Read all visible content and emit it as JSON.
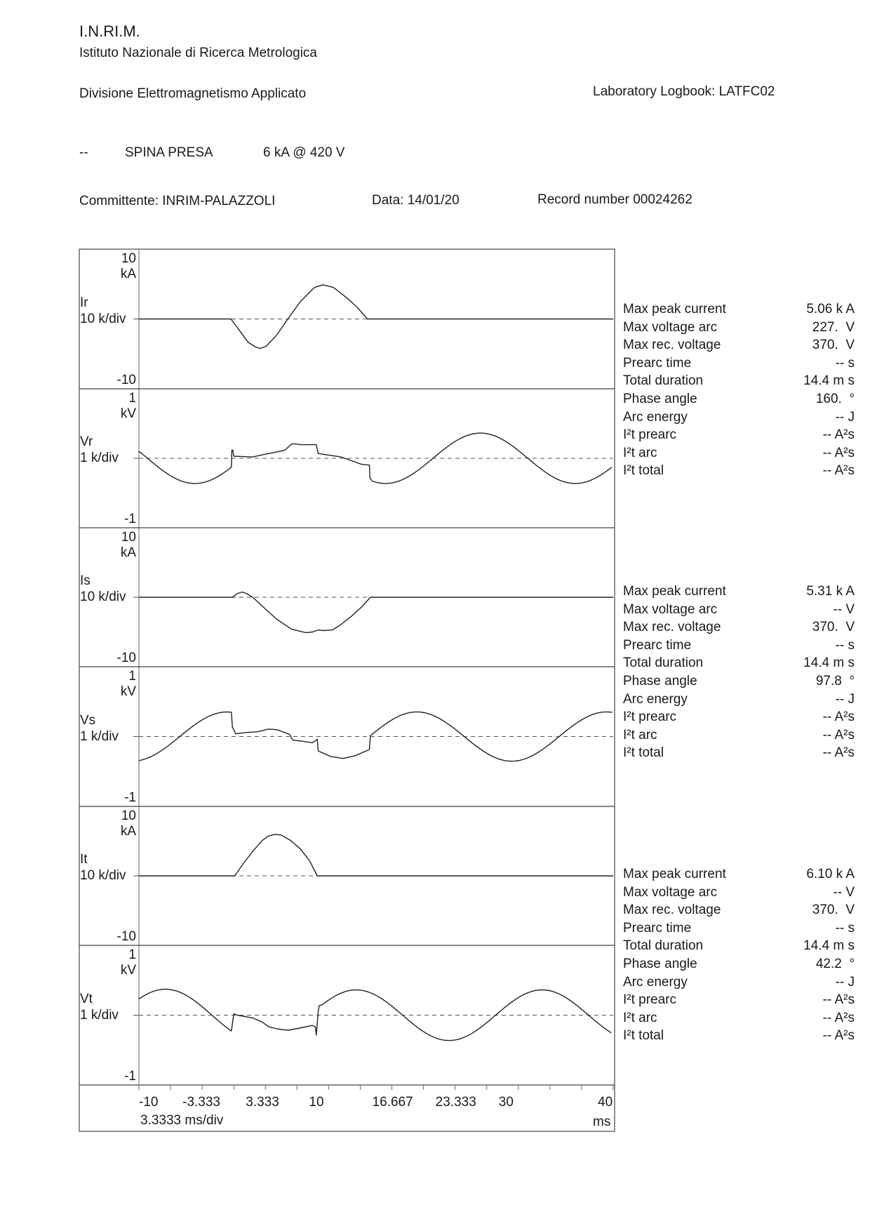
{
  "header": {
    "org_abbr": "I.N.RI.M.",
    "org_name": "Istituto Nazionale di Ricerca Metrologica",
    "division": "Divisione Elettromagnetismo Applicato",
    "logbook": "Laboratory Logbook: LATFC02",
    "test_dash": "--",
    "test_name": "SPINA PRESA",
    "test_rating": "6 kA @ 420 V",
    "client": "Committente: INRIM-PALAZZOLI",
    "date": "Data: 14/01/20",
    "record": "Record number 00024262"
  },
  "chart_data": {
    "type": "line",
    "x_axis": {
      "range": [
        -10,
        40
      ],
      "tick_step": 3.3333,
      "tick_labels": [
        {
          "value": -10,
          "label": "-10"
        },
        {
          "value": -3.333,
          "label": "-3.333"
        },
        {
          "value": 3.333,
          "label": "3.333"
        },
        {
          "value": 10,
          "label": "10"
        },
        {
          "value": 16.667,
          "label": "16.667"
        },
        {
          "value": 23.333,
          "label": "23.333"
        },
        {
          "value": 30,
          "label": "30"
        },
        {
          "value": 40,
          "label": "40"
        }
      ],
      "scale_label": "3.3333 ms/div",
      "unit": "ms"
    },
    "panels": [
      {
        "name": "Ir",
        "div_label": "10 k/div",
        "unit": "kA",
        "max_label": "10",
        "min_label": "-10",
        "range": [
          -10,
          10
        ],
        "segments": [
          {
            "points": [
              [
                -10,
                0
              ],
              [
                -0.3,
                0
              ],
              [
                0.5,
                -1.5
              ],
              [
                1.5,
                -3.4
              ],
              [
                2.3,
                -4.1
              ],
              [
                2.8,
                -4.3
              ],
              [
                3.4,
                -4.0
              ],
              [
                4.5,
                -2.4
              ],
              [
                5.7,
                0
              ],
              [
                7,
                2.5
              ],
              [
                8.5,
                4.6
              ],
              [
                9.4,
                5.0
              ],
              [
                10.5,
                4.6
              ],
              [
                12,
                3.0
              ],
              [
                13,
                1.7
              ],
              [
                14.1,
                0
              ],
              [
                40,
                0
              ]
            ]
          }
        ]
      },
      {
        "name": "Vr",
        "div_label": "1 k/div",
        "unit": "kV",
        "max_label": "1",
        "min_label": "-1",
        "range": [
          -1,
          1
        ],
        "segments": [
          {
            "sine": {
              "t0": -10,
              "t1": -0.4,
              "amp": 0.37,
              "period": 20,
              "t_up": 0.9
            }
          },
          {
            "points": [
              [
                -0.25,
                -0.13
              ],
              [
                -0.2,
                0.12
              ],
              [
                -0.1,
                0.12
              ],
              [
                0,
                0.03
              ],
              [
                2,
                0.02
              ],
              [
                3,
                0.05
              ],
              [
                4.1,
                0.08
              ],
              [
                5.4,
                0.12
              ],
              [
                6.1,
                0.21
              ],
              [
                6.6,
                0.21
              ],
              [
                7,
                0.2
              ],
              [
                8.7,
                0.2
              ],
              [
                8.9,
                0.07
              ],
              [
                11.3,
                0.02
              ],
              [
                12.5,
                -0.04
              ],
              [
                13.5,
                -0.09
              ],
              [
                14.3,
                -0.1
              ],
              [
                14.35,
                -0.29
              ]
            ]
          },
          {
            "sine": {
              "t0": 14.6,
              "t1": 40,
              "amp": 0.37,
              "period": 20,
              "t_up": 21
            }
          }
        ]
      },
      {
        "name": "Is",
        "div_label": "10 k/div",
        "unit": "kA",
        "max_label": "10",
        "min_label": "-10",
        "range": [
          -10,
          10
        ],
        "segments": [
          {
            "points": [
              [
                -10,
                0
              ],
              [
                -0.1,
                0
              ],
              [
                0.3,
                0.5
              ],
              [
                0.9,
                0.77
              ],
              [
                1.4,
                0.5
              ],
              [
                2.0,
                0
              ],
              [
                3,
                -1.3
              ],
              [
                4.5,
                -3.2
              ],
              [
                6.1,
                -4.7
              ],
              [
                7.6,
                -5.2
              ],
              [
                8.3,
                -5.1
              ],
              [
                8.9,
                -4.8
              ],
              [
                9.5,
                -4.9
              ],
              [
                10.4,
                -4.8
              ],
              [
                11.3,
                -4.0
              ],
              [
                12.4,
                -2.8
              ],
              [
                13.5,
                -1.4
              ],
              [
                14.4,
                0
              ],
              [
                40,
                0
              ]
            ]
          }
        ]
      },
      {
        "name": "Vs",
        "div_label": "1 k/div",
        "unit": "kV",
        "max_label": "1",
        "min_label": "-1",
        "range": [
          -1,
          1
        ],
        "segments": [
          {
            "sine": {
              "t0": -10,
              "t1": -0.2,
              "amp": 0.36,
              "period": 20,
              "t_up": -5.7
            }
          },
          {
            "points": [
              [
                -0.15,
                0.14
              ],
              [
                0.2,
                0.04
              ],
              [
                1.3,
                0.06
              ],
              [
                2.5,
                0.07
              ],
              [
                3.7,
                0.11
              ],
              [
                4.6,
                0.1
              ],
              [
                5.9,
                0.03
              ],
              [
                6.2,
                -0.05
              ],
              [
                7.3,
                -0.07
              ],
              [
                8.3,
                -0.09
              ],
              [
                8.8,
                -0.04
              ],
              [
                8.9,
                -0.21
              ],
              [
                10.2,
                -0.29
              ],
              [
                11.5,
                -0.32
              ],
              [
                12.8,
                -0.28
              ],
              [
                14.3,
                -0.19
              ]
            ]
          },
          {
            "sine": {
              "t0": 14.4,
              "t1": 40,
              "amp": 0.36,
              "period": 20,
              "t_up": 14.3
            }
          }
        ]
      },
      {
        "name": "It",
        "div_label": "10 k/div",
        "unit": "kA",
        "max_label": "10",
        "min_label": "-10",
        "range": [
          -10,
          10
        ],
        "segments": [
          {
            "points": [
              [
                -10,
                0
              ],
              [
                0.1,
                0
              ],
              [
                1,
                1.8
              ],
              [
                2,
                3.6
              ],
              [
                3,
                5.2
              ],
              [
                3.6,
                5.8
              ],
              [
                4.3,
                6.1
              ],
              [
                5,
                6.0
              ],
              [
                6,
                5.2
              ],
              [
                7,
                4.0
              ],
              [
                8,
                2.2
              ],
              [
                8.8,
                0
              ],
              [
                40,
                0
              ]
            ]
          }
        ]
      },
      {
        "name": "Vt",
        "div_label": "1 k/div",
        "unit": "kV",
        "max_label": "1",
        "min_label": "-1",
        "range": [
          -1,
          1
        ],
        "segments": [
          {
            "sine": {
              "t0": -10,
              "t1": -0.2,
              "amp": 0.38,
              "period": 19.6,
              "t_up": -12.1
            }
          },
          {
            "points": [
              [
                0,
                0.02
              ],
              [
                0.4,
                0.0
              ],
              [
                2,
                -0.04
              ],
              [
                3,
                -0.1
              ],
              [
                3.7,
                -0.17
              ],
              [
                4.6,
                -0.2
              ],
              [
                5.7,
                -0.22
              ],
              [
                6.9,
                -0.19
              ],
              [
                8.3,
                -0.15
              ],
              [
                8.6,
                -0.17
              ],
              [
                8.7,
                -0.29
              ],
              [
                8.9,
                0.05
              ],
              [
                9.0,
                0.14
              ]
            ]
          },
          {
            "sine": {
              "t0": 9.3,
              "t1": 40,
              "amp": 0.37,
              "period": 19.6,
              "t_up": 8.0
            }
          }
        ]
      }
    ]
  },
  "stats": [
    {
      "rows": [
        {
          "label": "Max peak current",
          "value": "5.06 k A"
        },
        {
          "label": "Max voltage arc",
          "value": "227.  V"
        },
        {
          "label": "Max rec. voltage",
          "value": "370.  V"
        },
        {
          "label": "Prearc time",
          "value": "-- s"
        },
        {
          "label": "Total duration",
          "value": "14.4 m s"
        },
        {
          "label": "Phase angle",
          "value": "160.  °"
        },
        {
          "label": "Arc energy",
          "value": "-- J"
        },
        {
          "label": "I²t prearc",
          "value": "-- A²s"
        },
        {
          "label": "I²t arc",
          "value": "-- A²s"
        },
        {
          "label": "I²t total",
          "value": "-- A²s"
        }
      ]
    },
    {
      "rows": [
        {
          "label": "Max peak current",
          "value": "5.31 k A"
        },
        {
          "label": "Max voltage arc",
          "value": "-- V"
        },
        {
          "label": "Max rec. voltage",
          "value": "370.  V"
        },
        {
          "label": "Prearc time",
          "value": "-- s"
        },
        {
          "label": "Total duration",
          "value": "14.4 m s"
        },
        {
          "label": "Phase angle",
          "value": "97.8  °"
        },
        {
          "label": "Arc energy",
          "value": "-- J"
        },
        {
          "label": "I²t prearc",
          "value": "-- A²s"
        },
        {
          "label": "I²t arc",
          "value": "-- A²s"
        },
        {
          "label": "I²t total",
          "value": "-- A²s"
        }
      ]
    },
    {
      "rows": [
        {
          "label": "Max peak current",
          "value": "6.10 k A"
        },
        {
          "label": "Max voltage arc",
          "value": "-- V"
        },
        {
          "label": "Max rec. voltage",
          "value": "370.  V"
        },
        {
          "label": "Prearc time",
          "value": "-- s"
        },
        {
          "label": "Total duration",
          "value": "14.4 m s"
        },
        {
          "label": "Phase angle",
          "value": "42.2  °"
        },
        {
          "label": "Arc energy",
          "value": "-- J"
        },
        {
          "label": "I²t prearc",
          "value": "-- A²s"
        },
        {
          "label": "I²t arc",
          "value": "-- A²s"
        },
        {
          "label": "I²t total",
          "value": "-- A²s"
        }
      ]
    }
  ]
}
